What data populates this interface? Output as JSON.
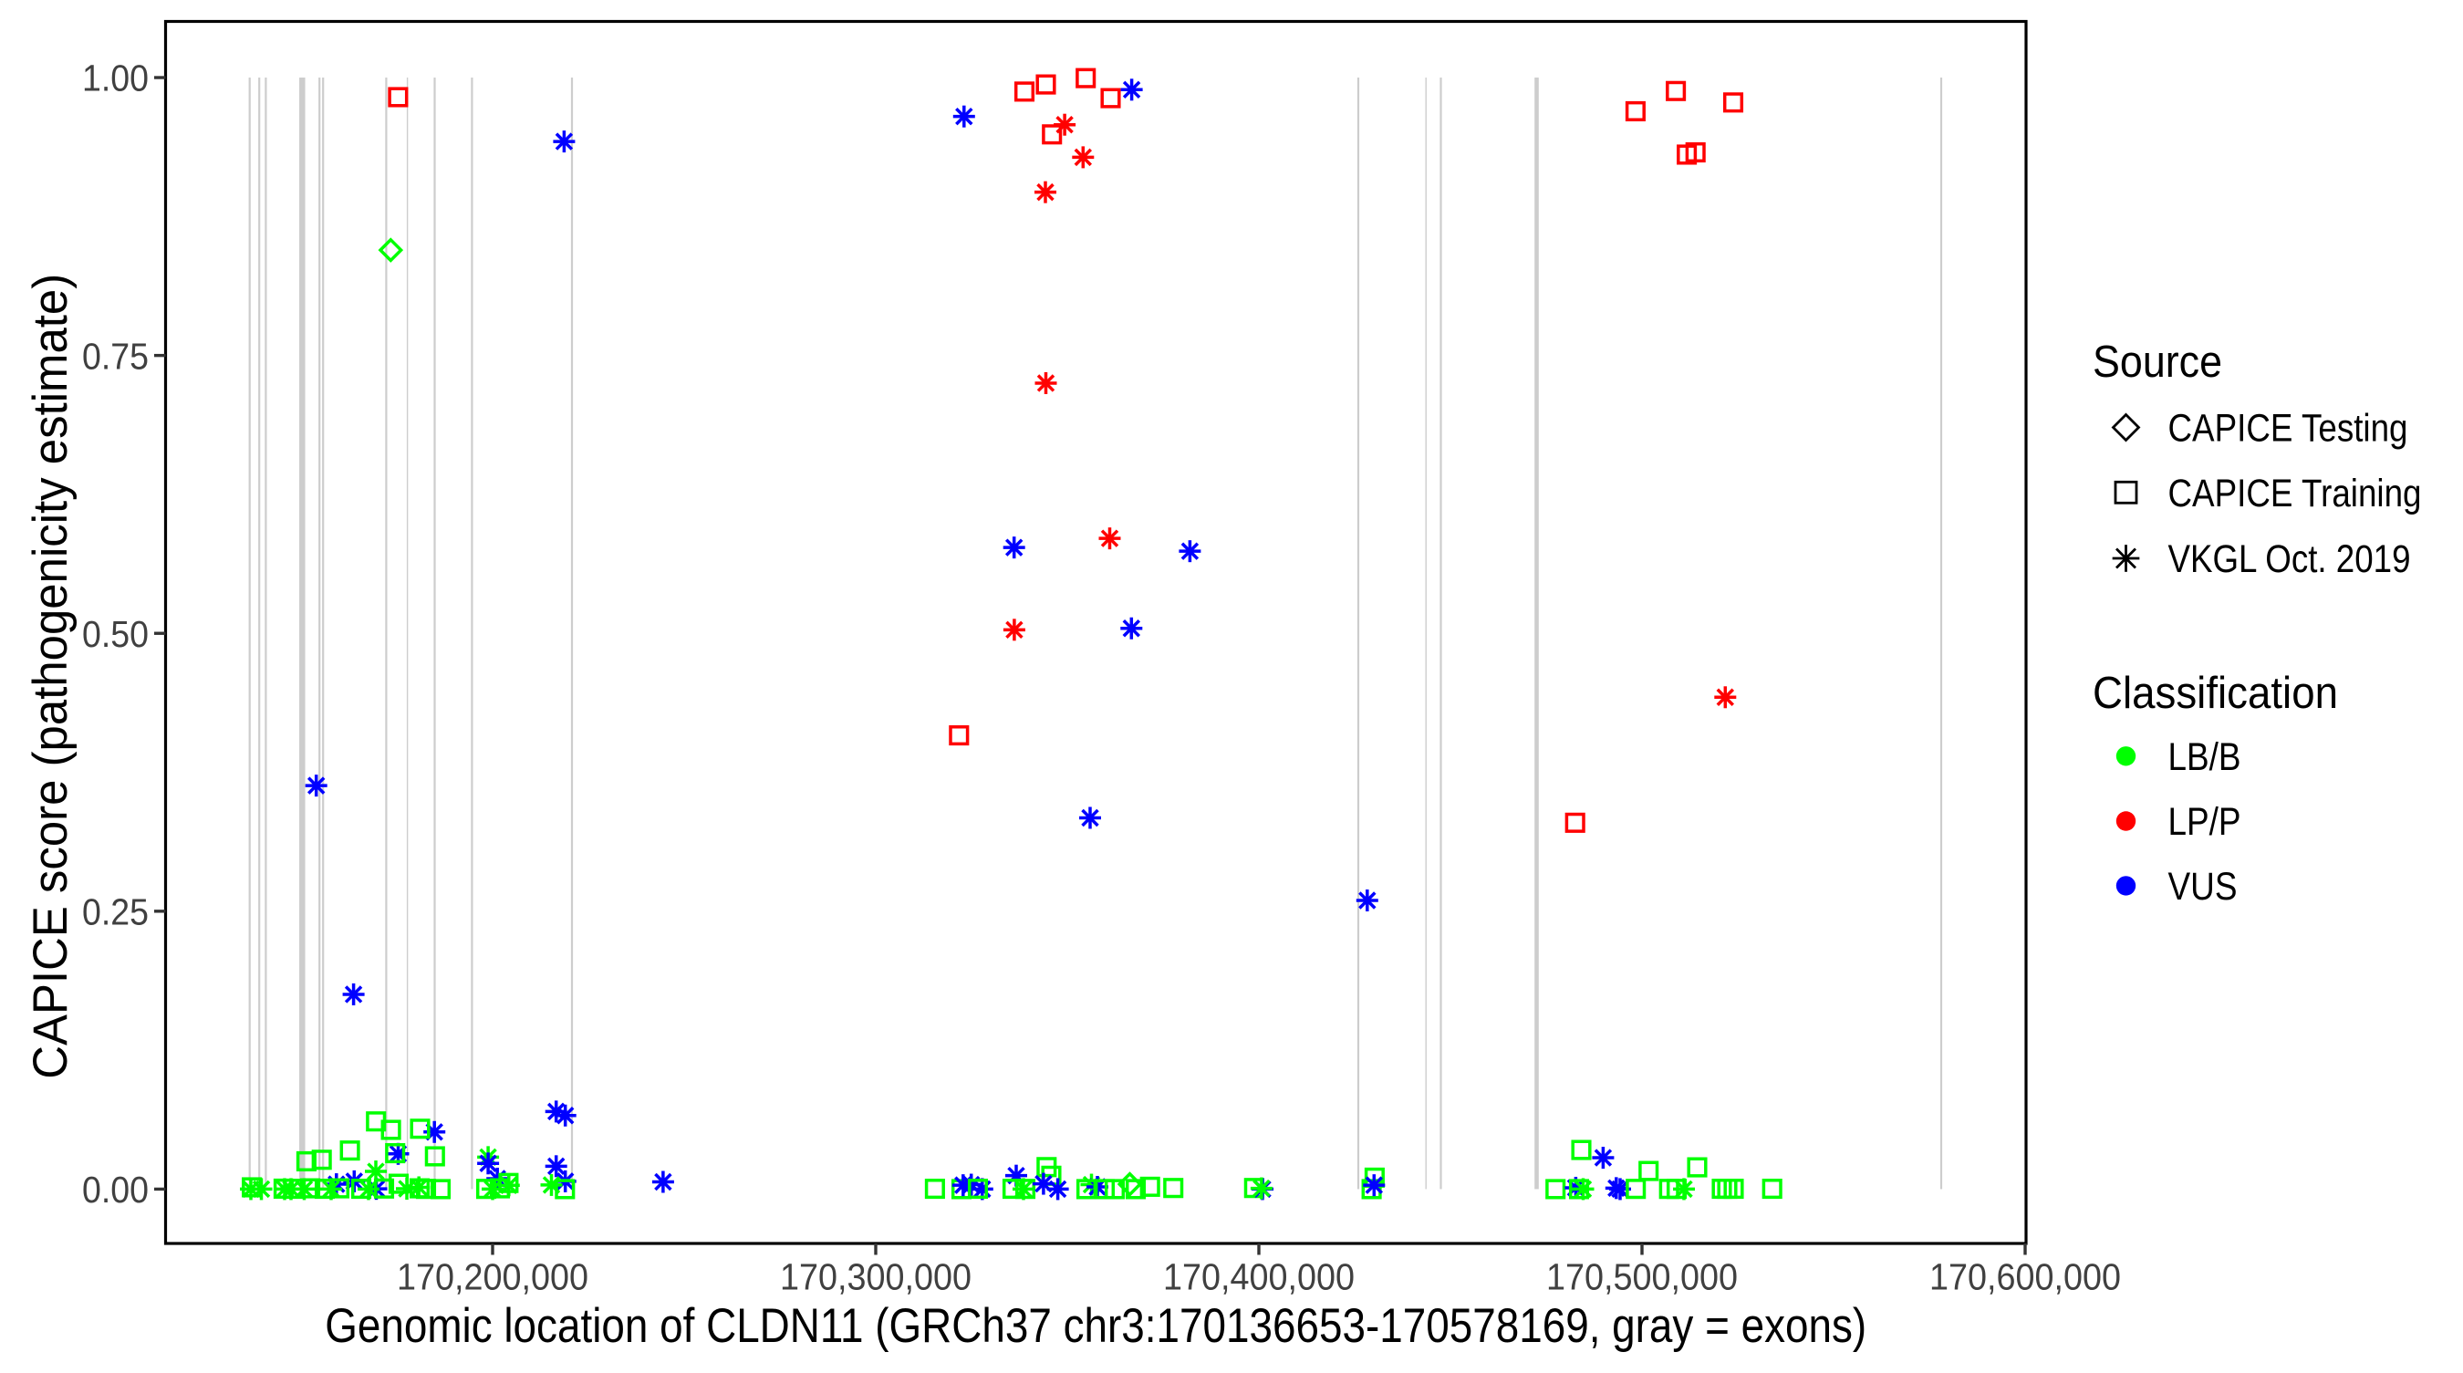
{
  "chart_data": {
    "type": "scatter",
    "title": "",
    "xlabel": "Genomic location of CLDN11 (GRCh37 chr3:170136653-170578169, gray = exons)",
    "ylabel": "CAPICE score (pathogenicity estimate)",
    "xlim": [
      170114643,
      170600238
    ],
    "ylim": [
      -0.0489,
      1.0505
    ],
    "x_tick_values": [
      170200000,
      170300000,
      170400000,
      170500000,
      170600000
    ],
    "x_tick_labels": [
      "170,200,000",
      "170,300,000",
      "170,400,000",
      "170,500,000",
      "170,600,000"
    ],
    "y_tick_values": [
      0.0,
      0.25,
      0.5,
      0.75,
      1.0
    ],
    "y_tick_labels": [
      "0.00",
      "0.25",
      "0.50",
      "0.75",
      "1.00"
    ],
    "grid": "off",
    "legend_position": "right",
    "legend": {
      "source": {
        "title": "Source",
        "items": [
          {
            "shape": "diamond",
            "label": "CAPICE Testing"
          },
          {
            "shape": "square",
            "label": "CAPICE Training"
          },
          {
            "shape": "asterisk",
            "label": "VKGL Oct. 2019"
          }
        ]
      },
      "classification": {
        "title": "Classification",
        "items": [
          {
            "color": "#00FF00",
            "label": "LB/B"
          },
          {
            "color": "#FF0000",
            "label": "LP/P"
          },
          {
            "color": "#0000FF",
            "label": "VUS"
          }
        ]
      }
    },
    "colors": {
      "LB/B": "#00FF00",
      "LP/P": "#FF0000",
      "VUS": "#0000FF",
      "exon": "#CDCDCD",
      "axis_text": "#404040",
      "axis_title": "#000000",
      "panel_border": "#000000"
    },
    "exons": [
      {
        "start": 170136333,
        "end": 170136857
      },
      {
        "start": 170138833,
        "end": 170139357
      },
      {
        "start": 170140548,
        "end": 170141071
      },
      {
        "start": 170149536,
        "end": 170151083
      },
      {
        "start": 170154548,
        "end": 170155071
      },
      {
        "start": 170155500,
        "end": 170156024
      },
      {
        "start": 170171976,
        "end": 170172500
      },
      {
        "start": 170177595,
        "end": 170177929
      },
      {
        "start": 170184619,
        "end": 170185143
      },
      {
        "start": 170194357,
        "end": 170194881
      },
      {
        "start": 170220452,
        "end": 170220976
      },
      {
        "start": 170425690,
        "end": 170426214
      },
      {
        "start": 170443452,
        "end": 170443786
      },
      {
        "start": 170447238,
        "end": 170447762
      },
      {
        "start": 170471952,
        "end": 170473048
      },
      {
        "start": 170577833,
        "end": 170578357
      }
    ],
    "points": [
      {
        "pos": 170175333,
        "score": 0.9824,
        "source": "CAPICE Training",
        "class": "LP/P"
      },
      {
        "pos": 170218667,
        "score": 0.9425,
        "source": "VKGL Oct. 2019",
        "class": "VUS"
      },
      {
        "pos": 170173405,
        "score": 0.8448,
        "source": "CAPICE Testing",
        "class": "LB/B"
      },
      {
        "pos": 170366810,
        "score": 0.9891,
        "source": "VKGL Oct. 2019",
        "class": "VUS"
      },
      {
        "pos": 170323048,
        "score": 0.965,
        "source": "VKGL Oct. 2019",
        "class": "VUS"
      },
      {
        "pos": 170338810,
        "score": 0.9874,
        "source": "CAPICE Training",
        "class": "LP/P"
      },
      {
        "pos": 170344405,
        "score": 0.9938,
        "source": "CAPICE Training",
        "class": "LP/P"
      },
      {
        "pos": 170354810,
        "score": 0.9995,
        "source": "CAPICE Training",
        "class": "LP/P"
      },
      {
        "pos": 170361310,
        "score": 0.9815,
        "source": "CAPICE Training",
        "class": "LP/P"
      },
      {
        "pos": 170346000,
        "score": 0.9489,
        "source": "CAPICE Training",
        "class": "LP/P"
      },
      {
        "pos": 170349310,
        "score": 0.9576,
        "source": "VKGL Oct. 2019",
        "class": "LP/P"
      },
      {
        "pos": 170354119,
        "score": 0.9283,
        "source": "VKGL Oct. 2019",
        "class": "LP/P"
      },
      {
        "pos": 170344286,
        "score": 0.8969,
        "source": "VKGL Oct. 2019",
        "class": "LP/P"
      },
      {
        "pos": 170344405,
        "score": 0.7251,
        "source": "VKGL Oct. 2019",
        "class": "LP/P"
      },
      {
        "pos": 170336119,
        "score": 0.5772,
        "source": "VKGL Oct. 2019",
        "class": "VUS"
      },
      {
        "pos": 170361071,
        "score": 0.5854,
        "source": "VKGL Oct. 2019",
        "class": "LP/P"
      },
      {
        "pos": 170382000,
        "score": 0.5739,
        "source": "VKGL Oct. 2019",
        "class": "VUS"
      },
      {
        "pos": 170336167,
        "score": 0.5032,
        "source": "VKGL Oct. 2019",
        "class": "LP/P"
      },
      {
        "pos": 170366738,
        "score": 0.5045,
        "source": "VKGL Oct. 2019",
        "class": "VUS"
      },
      {
        "pos": 170321738,
        "score": 0.4082,
        "source": "CAPICE Training",
        "class": "LP/P"
      },
      {
        "pos": 170355952,
        "score": 0.334,
        "source": "VKGL Oct. 2019",
        "class": "VUS"
      },
      {
        "pos": 170153976,
        "score": 0.363,
        "source": "VKGL Oct. 2019",
        "class": "VUS"
      },
      {
        "pos": 170163714,
        "score": 0.1752,
        "source": "VKGL Oct. 2019",
        "class": "VUS"
      },
      {
        "pos": 170428286,
        "score": 0.2597,
        "source": "VKGL Oct. 2019",
        "class": "VUS"
      },
      {
        "pos": 170482548,
        "score": 0.3296,
        "source": "CAPICE Training",
        "class": "LP/P"
      },
      {
        "pos": 170521738,
        "score": 0.4425,
        "source": "VKGL Oct. 2019",
        "class": "LP/P"
      },
      {
        "pos": 170498310,
        "score": 0.9697,
        "source": "CAPICE Training",
        "class": "LP/P"
      },
      {
        "pos": 170508833,
        "score": 0.9879,
        "source": "CAPICE Training",
        "class": "LP/P"
      },
      {
        "pos": 170523810,
        "score": 0.9776,
        "source": "CAPICE Training",
        "class": "LP/P"
      },
      {
        "pos": 170511690,
        "score": 0.9307,
        "source": "CAPICE Training",
        "class": "LP/P"
      },
      {
        "pos": 170513976,
        "score": 0.9327,
        "source": "CAPICE Training",
        "class": "LP/P"
      },
      {
        "pos": 170184810,
        "score": 0.0514,
        "source": "VKGL Oct. 2019",
        "class": "VUS"
      },
      {
        "pos": 170216595,
        "score": 0.0698,
        "source": "VKGL Oct. 2019",
        "class": "VUS"
      },
      {
        "pos": 170218976,
        "score": 0.0662,
        "source": "VKGL Oct. 2019",
        "class": "VUS"
      },
      {
        "pos": 170169571,
        "score": 0.0609,
        "source": "CAPICE Training",
        "class": "LB/B"
      },
      {
        "pos": 170173476,
        "score": 0.0533,
        "source": "CAPICE Training",
        "class": "LB/B"
      },
      {
        "pos": 170181071,
        "score": 0.0543,
        "source": "CAPICE Training",
        "class": "LB/B"
      },
      {
        "pos": 170162762,
        "score": 0.0347,
        "source": "CAPICE Training",
        "class": "LB/B"
      },
      {
        "pos": 170155405,
        "score": 0.0264,
        "source": "CAPICE Training",
        "class": "LB/B"
      },
      {
        "pos": 170151405,
        "score": 0.025,
        "source": "CAPICE Training",
        "class": "LB/B"
      },
      {
        "pos": 170175357,
        "score": 0.0317,
        "source": "VKGL Oct. 2019",
        "class": "VUS"
      },
      {
        "pos": 170174571,
        "score": 0.0323,
        "source": "CAPICE Training",
        "class": "LB/B"
      },
      {
        "pos": 170184952,
        "score": 0.0295,
        "source": "CAPICE Training",
        "class": "LB/B"
      },
      {
        "pos": 170198833,
        "score": 0.0288,
        "source": "VKGL Oct. 2019",
        "class": "LB/B"
      },
      {
        "pos": 170198833,
        "score": 0.0231,
        "source": "VKGL Oct. 2019",
        "class": "VUS"
      },
      {
        "pos": 170201238,
        "score": 0.0094,
        "source": "VKGL Oct. 2019",
        "class": "VUS"
      },
      {
        "pos": 170216595,
        "score": 0.0206,
        "source": "VKGL Oct. 2019",
        "class": "VUS"
      },
      {
        "pos": 170218976,
        "score": 0.007,
        "source": "VKGL Oct. 2019",
        "class": "VUS"
      },
      {
        "pos": 170215357,
        "score": 0.0037,
        "source": "VKGL Oct. 2019",
        "class": "LB/B"
      },
      {
        "pos": 170218881,
        "score": 0.0,
        "source": "CAPICE Training",
        "class": "LB/B"
      },
      {
        "pos": 170159238,
        "score": 0.0044,
        "source": "VKGL Oct. 2019",
        "class": "VUS"
      },
      {
        "pos": 170163881,
        "score": 0.007,
        "source": "VKGL Oct. 2019",
        "class": "VUS"
      },
      {
        "pos": 170169643,
        "score": 0.0002,
        "source": "VKGL Oct. 2019",
        "class": "VUS"
      },
      {
        "pos": 170169524,
        "score": 0.0159,
        "source": "VKGL Oct. 2019",
        "class": "LB/B"
      },
      {
        "pos": 170175476,
        "score": 0.0048,
        "source": "CAPICE Training",
        "class": "LB/B"
      },
      {
        "pos": 170177619,
        "score": 0.0003,
        "source": "VKGL Oct. 2019",
        "class": "LB/B"
      },
      {
        "pos": 170180762,
        "score": 0.0016,
        "source": "VKGL Oct. 2019",
        "class": "LB/B"
      },
      {
        "pos": 170180952,
        "score": 0.0007,
        "source": "CAPICE Training",
        "class": "LB/B"
      },
      {
        "pos": 170137167,
        "score": 0.0016,
        "source": "CAPICE Training",
        "class": "LB/B"
      },
      {
        "pos": 170136905,
        "score": 0.0,
        "source": "VKGL Oct. 2019",
        "class": "LB/B"
      },
      {
        "pos": 170139643,
        "score": 0.0,
        "source": "VKGL Oct. 2019",
        "class": "LB/B"
      },
      {
        "pos": 170145452,
        "score": 0.0004,
        "source": "CAPICE Training",
        "class": "LB/B"
      },
      {
        "pos": 170145714,
        "score": 0.0,
        "source": "VKGL Oct. 2019",
        "class": "LB/B"
      },
      {
        "pos": 170148095,
        "score": 0.0003,
        "source": "CAPICE Training",
        "class": "LB/B"
      },
      {
        "pos": 170150833,
        "score": 0.0,
        "source": "VKGL Oct. 2019",
        "class": "LB/B"
      },
      {
        "pos": 170152381,
        "score": 0.0007,
        "source": "CAPICE Training",
        "class": "LB/B"
      },
      {
        "pos": 170147381,
        "score": 0.0,
        "source": "VKGL Oct. 2019",
        "class": "LB/B"
      },
      {
        "pos": 170204143,
        "score": 0.0055,
        "source": "CAPICE Training",
        "class": "LB/B"
      },
      {
        "pos": 170204238,
        "score": 0.0034,
        "source": "VKGL Oct. 2019",
        "class": "LB/B"
      },
      {
        "pos": 170198333,
        "score": 0.0002,
        "source": "CAPICE Training",
        "class": "LB/B"
      },
      {
        "pos": 170244500,
        "score": 0.0065,
        "source": "VKGL Oct. 2019",
        "class": "VUS"
      },
      {
        "pos": 170315452,
        "score": 0.0003,
        "source": "CAPICE Training",
        "class": "LB/B"
      },
      {
        "pos": 170322381,
        "score": 0.0,
        "source": "CAPICE Training",
        "class": "LB/B"
      },
      {
        "pos": 170322810,
        "score": 0.0035,
        "source": "VKGL Oct. 2019",
        "class": "VUS"
      },
      {
        "pos": 170324929,
        "score": 0.004,
        "source": "VKGL Oct. 2019",
        "class": "VUS"
      },
      {
        "pos": 170327810,
        "score": 0.0,
        "source": "VKGL Oct. 2019",
        "class": "VUS"
      },
      {
        "pos": 170326667,
        "score": 0.0003,
        "source": "CAPICE Training",
        "class": "LB/B"
      },
      {
        "pos": 170336667,
        "score": 0.0121,
        "source": "VKGL Oct. 2019",
        "class": "VUS"
      },
      {
        "pos": 170335714,
        "score": 0.0003,
        "source": "CAPICE Training",
        "class": "LB/B"
      },
      {
        "pos": 170339048,
        "score": 0.0002,
        "source": "CAPICE Training",
        "class": "LB/B"
      },
      {
        "pos": 170338571,
        "score": 0.0,
        "source": "VKGL Oct. 2019",
        "class": "LB/B"
      },
      {
        "pos": 170344595,
        "score": 0.0198,
        "source": "CAPICE Training",
        "class": "LB/B"
      },
      {
        "pos": 170345833,
        "score": 0.012,
        "source": "CAPICE Training",
        "class": "LB/B"
      },
      {
        "pos": 170343786,
        "score": 0.0048,
        "source": "VKGL Oct. 2019",
        "class": "VUS"
      },
      {
        "pos": 170347524,
        "score": 0.0,
        "source": "VKGL Oct. 2019",
        "class": "VUS"
      },
      {
        "pos": 170356310,
        "score": 0.004,
        "source": "VKGL Oct. 2019",
        "class": "LB/B"
      },
      {
        "pos": 170357857,
        "score": 0.002,
        "source": "VKGL Oct. 2019",
        "class": "VUS"
      },
      {
        "pos": 170355000,
        "score": 0.0,
        "source": "CAPICE Training",
        "class": "LB/B"
      },
      {
        "pos": 170359762,
        "score": 0.0,
        "source": "CAPICE Training",
        "class": "LB/B"
      },
      {
        "pos": 170362381,
        "score": 0.0,
        "source": "CAPICE Training",
        "class": "LB/B"
      },
      {
        "pos": 170366310,
        "score": 0.0044,
        "source": "CAPICE Testing",
        "class": "LB/B"
      },
      {
        "pos": 170367857,
        "score": 0.0,
        "source": "CAPICE Training",
        "class": "LB/B"
      },
      {
        "pos": 170371595,
        "score": 0.0021,
        "source": "CAPICE Training",
        "class": "LB/B"
      },
      {
        "pos": 170377667,
        "score": 0.001,
        "source": "CAPICE Training",
        "class": "LB/B"
      },
      {
        "pos": 170398762,
        "score": 0.001,
        "source": "CAPICE Training",
        "class": "LB/B"
      },
      {
        "pos": 170400952,
        "score": 0.0,
        "source": "VKGL Oct. 2019",
        "class": "VUS"
      },
      {
        "pos": 170400690,
        "score": 0.0007,
        "source": "VKGL Oct. 2019",
        "class": "LB/B"
      },
      {
        "pos": 170430214,
        "score": 0.0103,
        "source": "CAPICE Training",
        "class": "LB/B"
      },
      {
        "pos": 170429429,
        "score": 0.0,
        "source": "CAPICE Training",
        "class": "LB/B"
      },
      {
        "pos": 170430071,
        "score": 0.0035,
        "source": "VKGL Oct. 2019",
        "class": "VUS"
      },
      {
        "pos": 170477429,
        "score": 0.0,
        "source": "CAPICE Training",
        "class": "LB/B"
      },
      {
        "pos": 170484167,
        "score": 0.0352,
        "source": "CAPICE Training",
        "class": "LB/B"
      },
      {
        "pos": 170489857,
        "score": 0.0282,
        "source": "VKGL Oct. 2019",
        "class": "VUS"
      },
      {
        "pos": 170482714,
        "score": 0.0012,
        "source": "VKGL Oct. 2019",
        "class": "VUS"
      },
      {
        "pos": 170483571,
        "score": 0.0,
        "source": "CAPICE Training",
        "class": "LB/B"
      },
      {
        "pos": 170484643,
        "score": 0.0,
        "source": "VKGL Oct. 2019",
        "class": "LB/B"
      },
      {
        "pos": 170493286,
        "score": 0.0009,
        "source": "VKGL Oct. 2019",
        "class": "VUS"
      },
      {
        "pos": 170494286,
        "score": 0.0,
        "source": "VKGL Oct. 2019",
        "class": "VUS"
      },
      {
        "pos": 170498381,
        "score": 0.0002,
        "source": "CAPICE Training",
        "class": "LB/B"
      },
      {
        "pos": 170501714,
        "score": 0.0163,
        "source": "CAPICE Training",
        "class": "LB/B"
      },
      {
        "pos": 170507071,
        "score": 0.0002,
        "source": "CAPICE Training",
        "class": "LB/B"
      },
      {
        "pos": 170509048,
        "score": 0.0002,
        "source": "CAPICE Training",
        "class": "LB/B"
      },
      {
        "pos": 170510952,
        "score": 0.0,
        "source": "VKGL Oct. 2019",
        "class": "LB/B"
      },
      {
        "pos": 170514405,
        "score": 0.0196,
        "source": "CAPICE Training",
        "class": "LB/B"
      },
      {
        "pos": 170520833,
        "score": 0.0003,
        "source": "CAPICE Training",
        "class": "LB/B"
      },
      {
        "pos": 170522262,
        "score": 0.0003,
        "source": "CAPICE Training",
        "class": "LB/B"
      },
      {
        "pos": 170523929,
        "score": 0.0003,
        "source": "CAPICE Training",
        "class": "LB/B"
      },
      {
        "pos": 170533976,
        "score": 0.0003,
        "source": "CAPICE Training",
        "class": "LB/B"
      },
      {
        "pos": 170156190,
        "score": 0.0003,
        "source": "CAPICE Training",
        "class": "LB/B"
      },
      {
        "pos": 170157857,
        "score": 0.0,
        "source": "VKGL Oct. 2019",
        "class": "LB/B"
      },
      {
        "pos": 170160000,
        "score": 0.0007,
        "source": "CAPICE Training",
        "class": "LB/B"
      },
      {
        "pos": 170165714,
        "score": 0.0003,
        "source": "CAPICE Training",
        "class": "LB/B"
      },
      {
        "pos": 170167619,
        "score": 0.0,
        "source": "VKGL Oct. 2019",
        "class": "LB/B"
      },
      {
        "pos": 170171667,
        "score": 0.0005,
        "source": "CAPICE Training",
        "class": "LB/B"
      },
      {
        "pos": 170182619,
        "score": 0.0002,
        "source": "CAPICE Training",
        "class": "LB/B"
      },
      {
        "pos": 170186429,
        "score": 0.0,
        "source": "CAPICE Training",
        "class": "LB/B"
      },
      {
        "pos": 170200000,
        "score": 0.0,
        "source": "VKGL Oct. 2019",
        "class": "LB/B"
      },
      {
        "pos": 170201905,
        "score": 0.0007,
        "source": "CAPICE Training",
        "class": "LB/B"
      }
    ]
  }
}
